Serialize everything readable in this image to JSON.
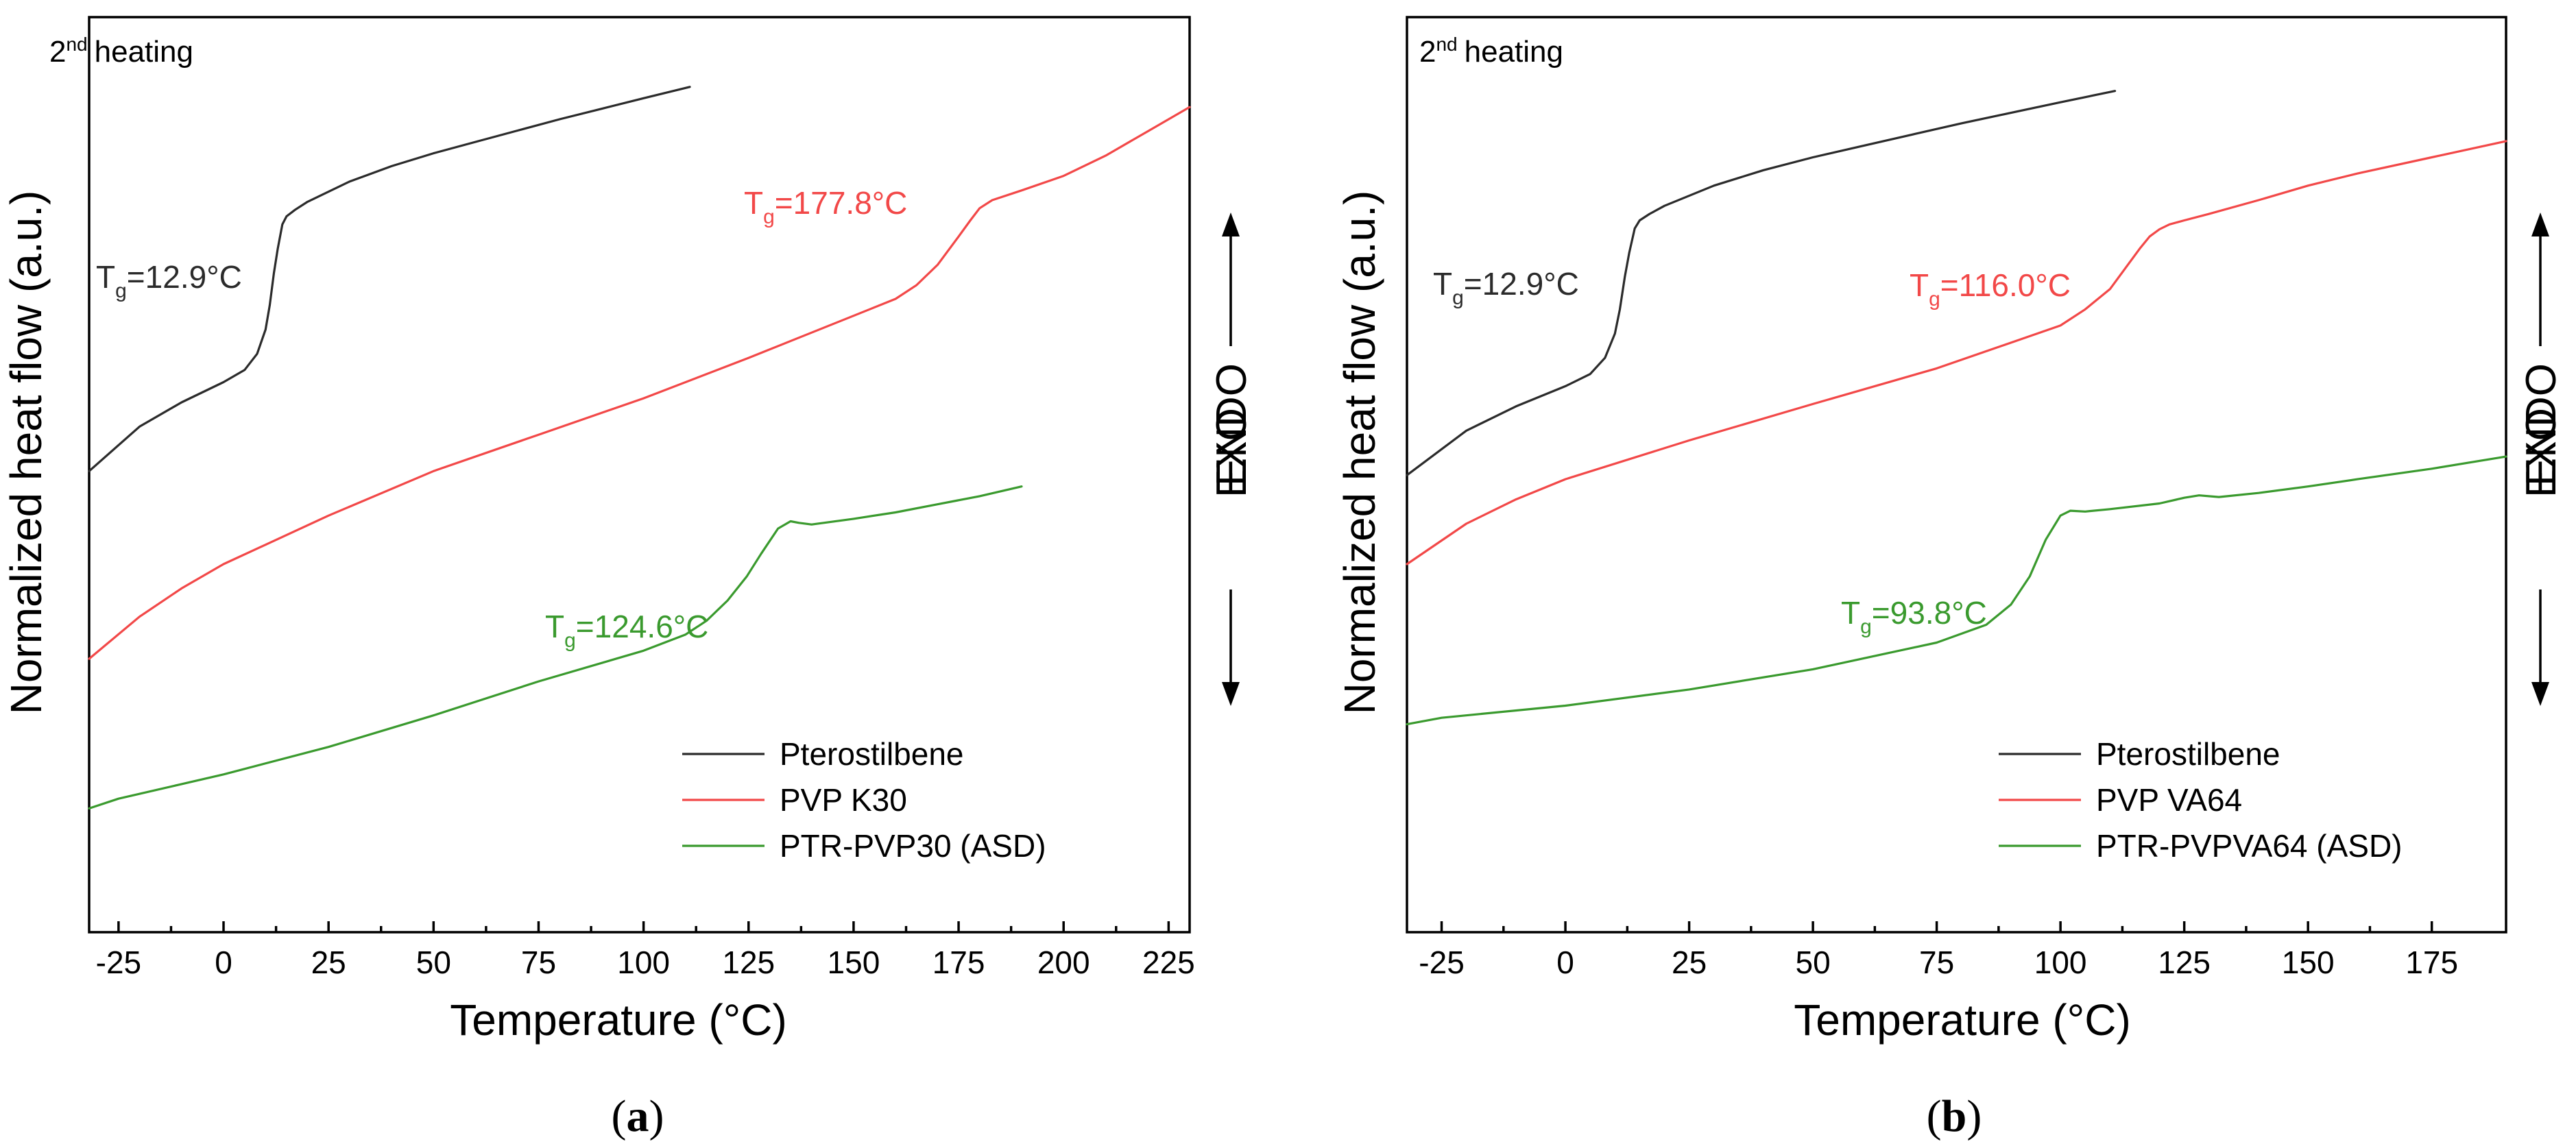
{
  "panels": [
    {
      "panel_label": "a",
      "note": "heating",
      "note_sup": "nd",
      "note_prefix": "2",
      "exo_label": "EXO",
      "endo_label": "ENDO",
      "colors": {
        "Pterostilbene": "#2b2b2b",
        "PVP K30": "#f24848",
        "PTR-PVP30 (ASD)": "#3a9a2e"
      },
      "annotations": [
        {
          "series": "Pterostilbene",
          "text_main": "T",
          "text_sub": "g",
          "text_rest": "=12.9°C",
          "color": "#2b2b2b"
        },
        {
          "series": "PVP K30",
          "text_main": "T",
          "text_sub": "g",
          "text_rest": "=177.8°C",
          "color": "#f24848"
        },
        {
          "series": "PTR-PVP30 (ASD)",
          "text_main": "T",
          "text_sub": "g",
          "text_rest": "=124.6°C",
          "color": "#3a9a2e"
        }
      ]
    },
    {
      "panel_label": "b",
      "note": "heating",
      "note_sup": "nd",
      "note_prefix": "2",
      "exo_label": "EXO",
      "endo_label": "ENDO",
      "colors": {
        "Pterostilbene": "#2b2b2b",
        "PVP VA64": "#f24848",
        "PTR-PVPVA64 (ASD)": "#3a9a2e"
      },
      "annotations": [
        {
          "series": "Pterostilbene",
          "text_main": "T",
          "text_sub": "g",
          "text_rest": "=12.9°C",
          "color": "#2b2b2b"
        },
        {
          "series": "PVP VA64",
          "text_main": "T",
          "text_sub": "g",
          "text_rest": "=116.0°C",
          "color": "#f24848"
        },
        {
          "series": "PTR-PVPVA64 (ASD)",
          "text_main": "T",
          "text_sub": "g",
          "text_rest": "=93.8°C",
          "color": "#3a9a2e"
        }
      ]
    }
  ],
  "chart_data": [
    {
      "type": "line",
      "xlabel": "Temperature (°C)",
      "ylabel": "Normalized heat flow (a.u.)",
      "xlim": [
        -32,
        230
      ],
      "ylim": [
        0,
        100
      ],
      "xticks": [
        -25,
        0,
        25,
        50,
        75,
        100,
        125,
        150,
        175,
        200,
        225
      ],
      "grid": false,
      "legend_position": "bottom-right",
      "series": [
        {
          "name": "Pterostilbene",
          "x": [
            -32,
            -20,
            -10,
            0,
            5,
            8,
            10,
            11,
            12,
            12.9,
            14,
            15,
            17,
            20,
            30,
            40,
            50,
            60,
            70,
            80,
            90,
            100,
            111
          ],
          "y": [
            51.5,
            57,
            60,
            62.5,
            64,
            66,
            69,
            72,
            76,
            79,
            82,
            83,
            83.8,
            84.8,
            87.3,
            89.2,
            90.8,
            92.2,
            93.6,
            95,
            96.3,
            97.6,
            99
          ]
        },
        {
          "name": "PVP K30",
          "x": [
            -32,
            -20,
            -10,
            0,
            25,
            50,
            75,
            100,
            125,
            150,
            160,
            165,
            170,
            175,
            177.8,
            180,
            183,
            190,
            200,
            210,
            220,
            230
          ],
          "y": [
            28.3,
            33.5,
            37,
            40,
            46,
            51.5,
            56,
            60.5,
            65.5,
            70.7,
            72.8,
            74.5,
            77,
            80.5,
            82.5,
            84,
            85,
            86.2,
            88,
            90.5,
            93.5,
            96.5
          ]
        },
        {
          "name": "PTR-PVP30 (ASD)",
          "x": [
            -32,
            -25,
            0,
            25,
            50,
            75,
            100,
            110,
            115,
            120,
            124.6,
            128,
            132,
            135,
            137,
            140,
            150,
            160,
            170,
            180,
            190
          ],
          "y": [
            9.8,
            11,
            14,
            17.4,
            21.3,
            25.5,
            29.3,
            31.3,
            33,
            35.5,
            38.5,
            41.3,
            44.4,
            45.3,
            45.1,
            44.9,
            45.6,
            46.4,
            47.4,
            48.4,
            49.6
          ]
        }
      ]
    },
    {
      "type": "line",
      "xlabel": "Temperature (°C)",
      "ylabel": "Normalized heat flow (a.u.)",
      "xlim": [
        -32,
        190
      ],
      "ylim": [
        0,
        100
      ],
      "xticks": [
        -25,
        0,
        25,
        50,
        75,
        100,
        125,
        150,
        175
      ],
      "grid": false,
      "legend_position": "bottom-right",
      "series": [
        {
          "name": "Pterostilbene",
          "x": [
            -32,
            -20,
            -10,
            0,
            5,
            8,
            10,
            11,
            12,
            12.9,
            14,
            15,
            17,
            20,
            30,
            40,
            50,
            60,
            70,
            80,
            90,
            100,
            111
          ],
          "y": [
            51,
            56.5,
            59.5,
            62,
            63.5,
            65.5,
            68.5,
            71.5,
            75.5,
            78.5,
            81.5,
            82.5,
            83.3,
            84.3,
            86.8,
            88.7,
            90.3,
            91.7,
            93.1,
            94.5,
            95.8,
            97.1,
            98.5
          ]
        },
        {
          "name": "PVP VA64",
          "x": [
            -32,
            -20,
            -10,
            0,
            25,
            50,
            75,
            100,
            105,
            110,
            113,
            116,
            118,
            120,
            122,
            125,
            130,
            140,
            150,
            160,
            175,
            190
          ],
          "y": [
            40,
            45,
            48,
            50.5,
            55.3,
            59.8,
            64.2,
            69.5,
            71.5,
            74,
            76.5,
            79,
            80.5,
            81.4,
            82,
            82.5,
            83.3,
            85,
            86.8,
            88.3,
            90.3,
            92.3
          ]
        },
        {
          "name": "PTR-PVPVA64 (ASD)",
          "x": [
            -32,
            -25,
            0,
            25,
            50,
            75,
            85,
            90,
            93.8,
            97,
            100,
            102,
            105,
            110,
            120,
            125,
            128,
            132,
            140,
            150,
            160,
            175,
            190
          ],
          "y": [
            20.2,
            21,
            22.5,
            24.5,
            27,
            30.3,
            32.5,
            35,
            38.5,
            43,
            46,
            46.6,
            46.5,
            46.8,
            47.5,
            48.2,
            48.5,
            48.3,
            48.8,
            49.6,
            50.5,
            51.8,
            53.3
          ]
        }
      ]
    }
  ]
}
